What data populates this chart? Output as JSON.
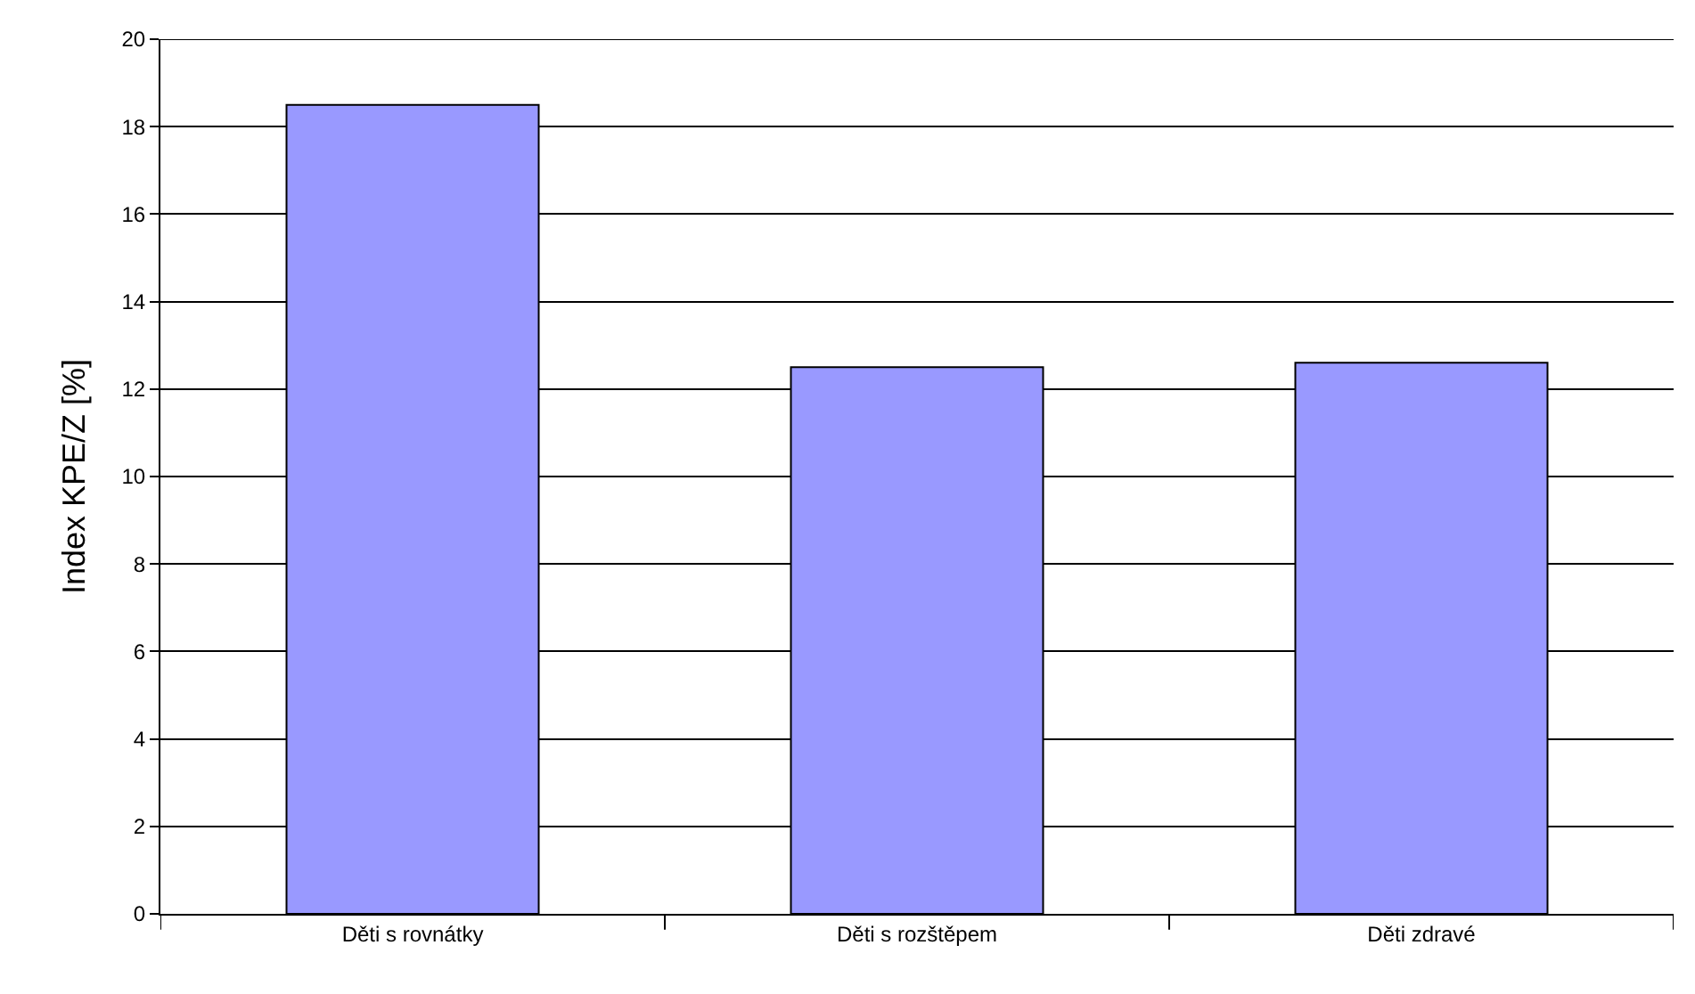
{
  "chart_data": {
    "type": "bar",
    "ylabel": "Index KPE/Z [%]",
    "categories": [
      "Děti s rovnátky",
      "Děti s rozštěpem",
      "Děti zdravé"
    ],
    "values": [
      18.5,
      12.5,
      12.6
    ],
    "color": "#9999ff",
    "ylim": [
      0,
      20
    ],
    "yticks": [
      0,
      2,
      4,
      6,
      8,
      10,
      12,
      14,
      16,
      18,
      20
    ],
    "grid": "y"
  }
}
